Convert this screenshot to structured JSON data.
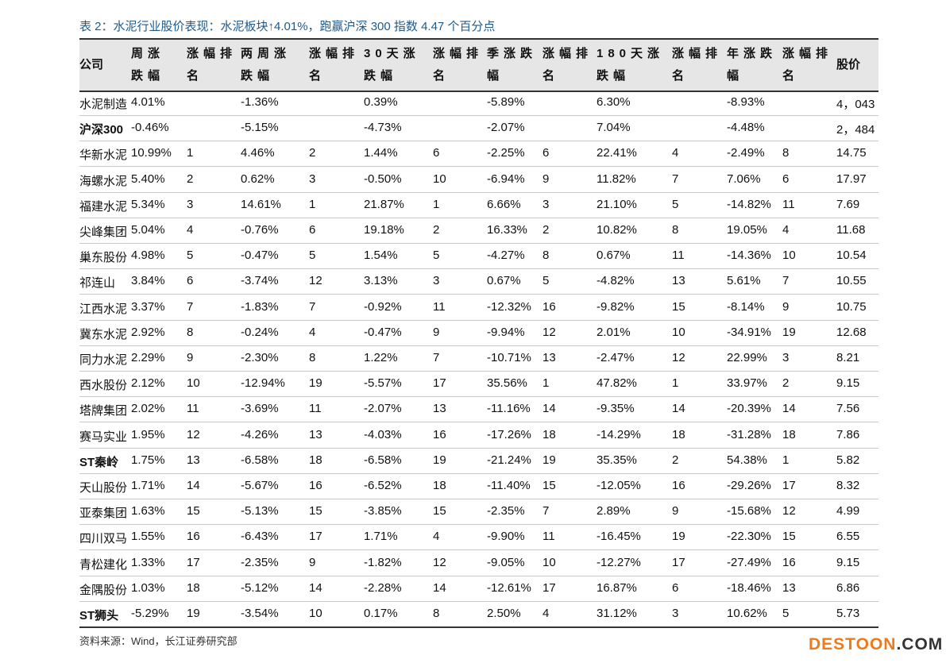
{
  "title": "表 2：水泥行业股价表现：水泥板块↑4.01%，跑赢沪深 300 指数 4.47 个百分点",
  "headers": [
    "公司",
    "周涨跌幅",
    "涨幅排名",
    "两周涨跌幅",
    "涨幅排名",
    "30天涨跌幅",
    "涨幅排名",
    "季涨跌幅",
    "涨幅排名",
    "180天涨跌幅",
    "涨幅排名",
    "年涨跌幅",
    "涨幅排名",
    "股价"
  ],
  "rows": [
    [
      "水泥制造",
      "4.01%",
      "",
      "-1.36%",
      "",
      "0.39%",
      "",
      "-5.89%",
      "",
      "6.30%",
      "",
      "-8.93%",
      "",
      "4，043"
    ],
    [
      "沪深300",
      "-0.46%",
      "",
      "-5.15%",
      "",
      "-4.73%",
      "",
      "-2.07%",
      "",
      "7.04%",
      "",
      "-4.48%",
      "",
      "2，484"
    ],
    [
      "华新水泥",
      "10.99%",
      "1",
      "4.46%",
      "2",
      "1.44%",
      "6",
      "-2.25%",
      "6",
      "22.41%",
      "4",
      "-2.49%",
      "8",
      "14.75"
    ],
    [
      "海螺水泥",
      "5.40%",
      "2",
      "0.62%",
      "3",
      "-0.50%",
      "10",
      "-6.94%",
      "9",
      "11.82%",
      "7",
      "7.06%",
      "6",
      "17.97"
    ],
    [
      "福建水泥",
      "5.34%",
      "3",
      "14.61%",
      "1",
      "21.87%",
      "1",
      "6.66%",
      "3",
      "21.10%",
      "5",
      "-14.82%",
      "11",
      "7.69"
    ],
    [
      "尖峰集团",
      "5.04%",
      "4",
      "-0.76%",
      "6",
      "19.18%",
      "2",
      "16.33%",
      "2",
      "10.82%",
      "8",
      "19.05%",
      "4",
      "11.68"
    ],
    [
      "巢东股份",
      "4.98%",
      "5",
      "-0.47%",
      "5",
      "1.54%",
      "5",
      "-4.27%",
      "8",
      "0.67%",
      "11",
      "-14.36%",
      "10",
      "10.54"
    ],
    [
      "祁连山",
      "3.84%",
      "6",
      "-3.74%",
      "12",
      "3.13%",
      "3",
      "0.67%",
      "5",
      "-4.82%",
      "13",
      "5.61%",
      "7",
      "10.55"
    ],
    [
      "江西水泥",
      "3.37%",
      "7",
      "-1.83%",
      "7",
      "-0.92%",
      "11",
      "-12.32%",
      "16",
      "-9.82%",
      "15",
      "-8.14%",
      "9",
      "10.75"
    ],
    [
      "冀东水泥",
      "2.92%",
      "8",
      "-0.24%",
      "4",
      "-0.47%",
      "9",
      "-9.94%",
      "12",
      "2.01%",
      "10",
      "-34.91%",
      "19",
      "12.68"
    ],
    [
      "同力水泥",
      "2.29%",
      "9",
      "-2.30%",
      "8",
      "1.22%",
      "7",
      "-10.71%",
      "13",
      "-2.47%",
      "12",
      "22.99%",
      "3",
      "8.21"
    ],
    [
      "西水股份",
      "2.12%",
      "10",
      "-12.94%",
      "19",
      "-5.57%",
      "17",
      "35.56%",
      "1",
      "47.82%",
      "1",
      "33.97%",
      "2",
      "9.15"
    ],
    [
      "塔牌集团",
      "2.02%",
      "11",
      "-3.69%",
      "11",
      "-2.07%",
      "13",
      "-11.16%",
      "14",
      "-9.35%",
      "14",
      "-20.39%",
      "14",
      "7.56"
    ],
    [
      "赛马实业",
      "1.95%",
      "12",
      "-4.26%",
      "13",
      "-4.03%",
      "16",
      "-17.26%",
      "18",
      "-14.29%",
      "18",
      "-31.28%",
      "18",
      "7.86"
    ],
    [
      "ST秦岭",
      "1.75%",
      "13",
      "-6.58%",
      "18",
      "-6.58%",
      "19",
      "-21.24%",
      "19",
      "35.35%",
      "2",
      "54.38%",
      "1",
      "5.82"
    ],
    [
      "天山股份",
      "1.71%",
      "14",
      "-5.67%",
      "16",
      "-6.52%",
      "18",
      "-11.40%",
      "15",
      "-12.05%",
      "16",
      "-29.26%",
      "17",
      "8.32"
    ],
    [
      "亚泰集团",
      "1.63%",
      "15",
      "-5.13%",
      "15",
      "-3.85%",
      "15",
      "-2.35%",
      "7",
      "2.89%",
      "9",
      "-15.68%",
      "12",
      "4.99"
    ],
    [
      "四川双马",
      "1.55%",
      "16",
      "-6.43%",
      "17",
      "1.71%",
      "4",
      "-9.90%",
      "11",
      "-16.45%",
      "19",
      "-22.30%",
      "15",
      "6.55"
    ],
    [
      "青松建化",
      "1.33%",
      "17",
      "-2.35%",
      "9",
      "-1.82%",
      "12",
      "-9.05%",
      "10",
      "-12.27%",
      "17",
      "-27.49%",
      "16",
      "9.15"
    ],
    [
      "金隅股份",
      "1.03%",
      "18",
      "-5.12%",
      "14",
      "-2.28%",
      "14",
      "-12.61%",
      "17",
      "16.87%",
      "6",
      "-18.46%",
      "13",
      "6.86"
    ],
    [
      "ST狮头",
      "-5.29%",
      "19",
      "-3.54%",
      "10",
      "0.17%",
      "8",
      "2.50%",
      "4",
      "31.12%",
      "3",
      "10.62%",
      "5",
      "5.73"
    ]
  ],
  "source": "资料来源：Wind，长江证券研究部",
  "watermark": {
    "main": "DESTOON",
    "suffix": ".COM"
  }
}
